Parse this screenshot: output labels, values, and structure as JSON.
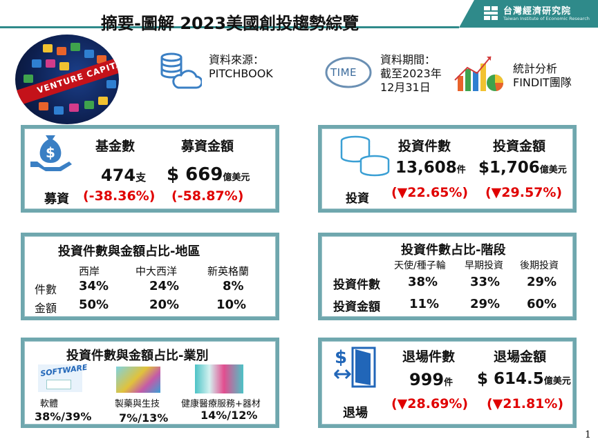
{
  "header": {
    "title": "摘要-圖解 2023美國創投趨勢綜覽",
    "logo_cn": "台灣經濟研究院",
    "logo_en": "Taiwan Institute of Economic Research"
  },
  "info": {
    "image_text": "VENTURE CAPITAL",
    "source_label": "資料來源：",
    "source_value": "PITCHBOOK",
    "time_badge": "TIME",
    "period_label": "資料期間：",
    "period_line2": "截至2023年",
    "period_line3": "12月31日",
    "analysis_line1": "統計分析",
    "analysis_line2": "FINDIT團隊"
  },
  "fundraising": {
    "col1_header": "基金數",
    "col2_header": "募資金額",
    "row_label": "募資",
    "funds_value": "474",
    "funds_unit": "支",
    "funds_change": "(-38.36%)",
    "amount_value": "$ 669",
    "amount_unit": "億美元",
    "amount_change": "(-58.87%)"
  },
  "investment": {
    "col1_header": "投資件數",
    "col2_header": "投資金額",
    "row_label": "投資",
    "count_value": "13,608",
    "count_unit": "件",
    "count_change": "(▼22.65%)",
    "amount_value": "$1,706",
    "amount_unit": "億美元",
    "amount_change": "(▼29.57%)"
  },
  "region": {
    "title": "投資件數與金額占比-地區",
    "columns": [
      "西岸",
      "中大西洋",
      "新英格蘭"
    ],
    "rows": [
      {
        "label": "件數",
        "values": [
          "34%",
          "24%",
          "8%"
        ]
      },
      {
        "label": "金額",
        "values": [
          "50%",
          "20%",
          "10%"
        ]
      }
    ]
  },
  "stage": {
    "title": "投資件數占比-階段",
    "columns": [
      "天使/種子輪",
      "早期投資",
      "後期投資"
    ],
    "rows": [
      {
        "label": "投資件數",
        "values": [
          "38%",
          "33%",
          "29%"
        ]
      },
      {
        "label": "投資金額",
        "values": [
          "11%",
          "29%",
          "60%"
        ]
      }
    ]
  },
  "industry": {
    "title": "投資件數與金額占比-業別",
    "software_img_text": "SOFTWARE",
    "items": [
      {
        "label": "軟體",
        "value": "38%/39%"
      },
      {
        "label": "製藥與生技",
        "value": "7%/13%"
      },
      {
        "label": "健康醫療服務+器材",
        "value": "14%/12%"
      }
    ]
  },
  "exit": {
    "col1_header": "退場件數",
    "col2_header": "退場金額",
    "row_label": "退場",
    "count_value": "999",
    "count_unit": "件",
    "count_change": "(▼28.69%)",
    "amount_value": "$ 614.5",
    "amount_unit": "億美元",
    "amount_change": "(▼21.81%)"
  },
  "page_number": "1",
  "colors": {
    "accent": "#2f8a8a",
    "panel_border": "#6fa7ae",
    "negative": "#e00000",
    "icon_blue": "#3a7fc4"
  }
}
